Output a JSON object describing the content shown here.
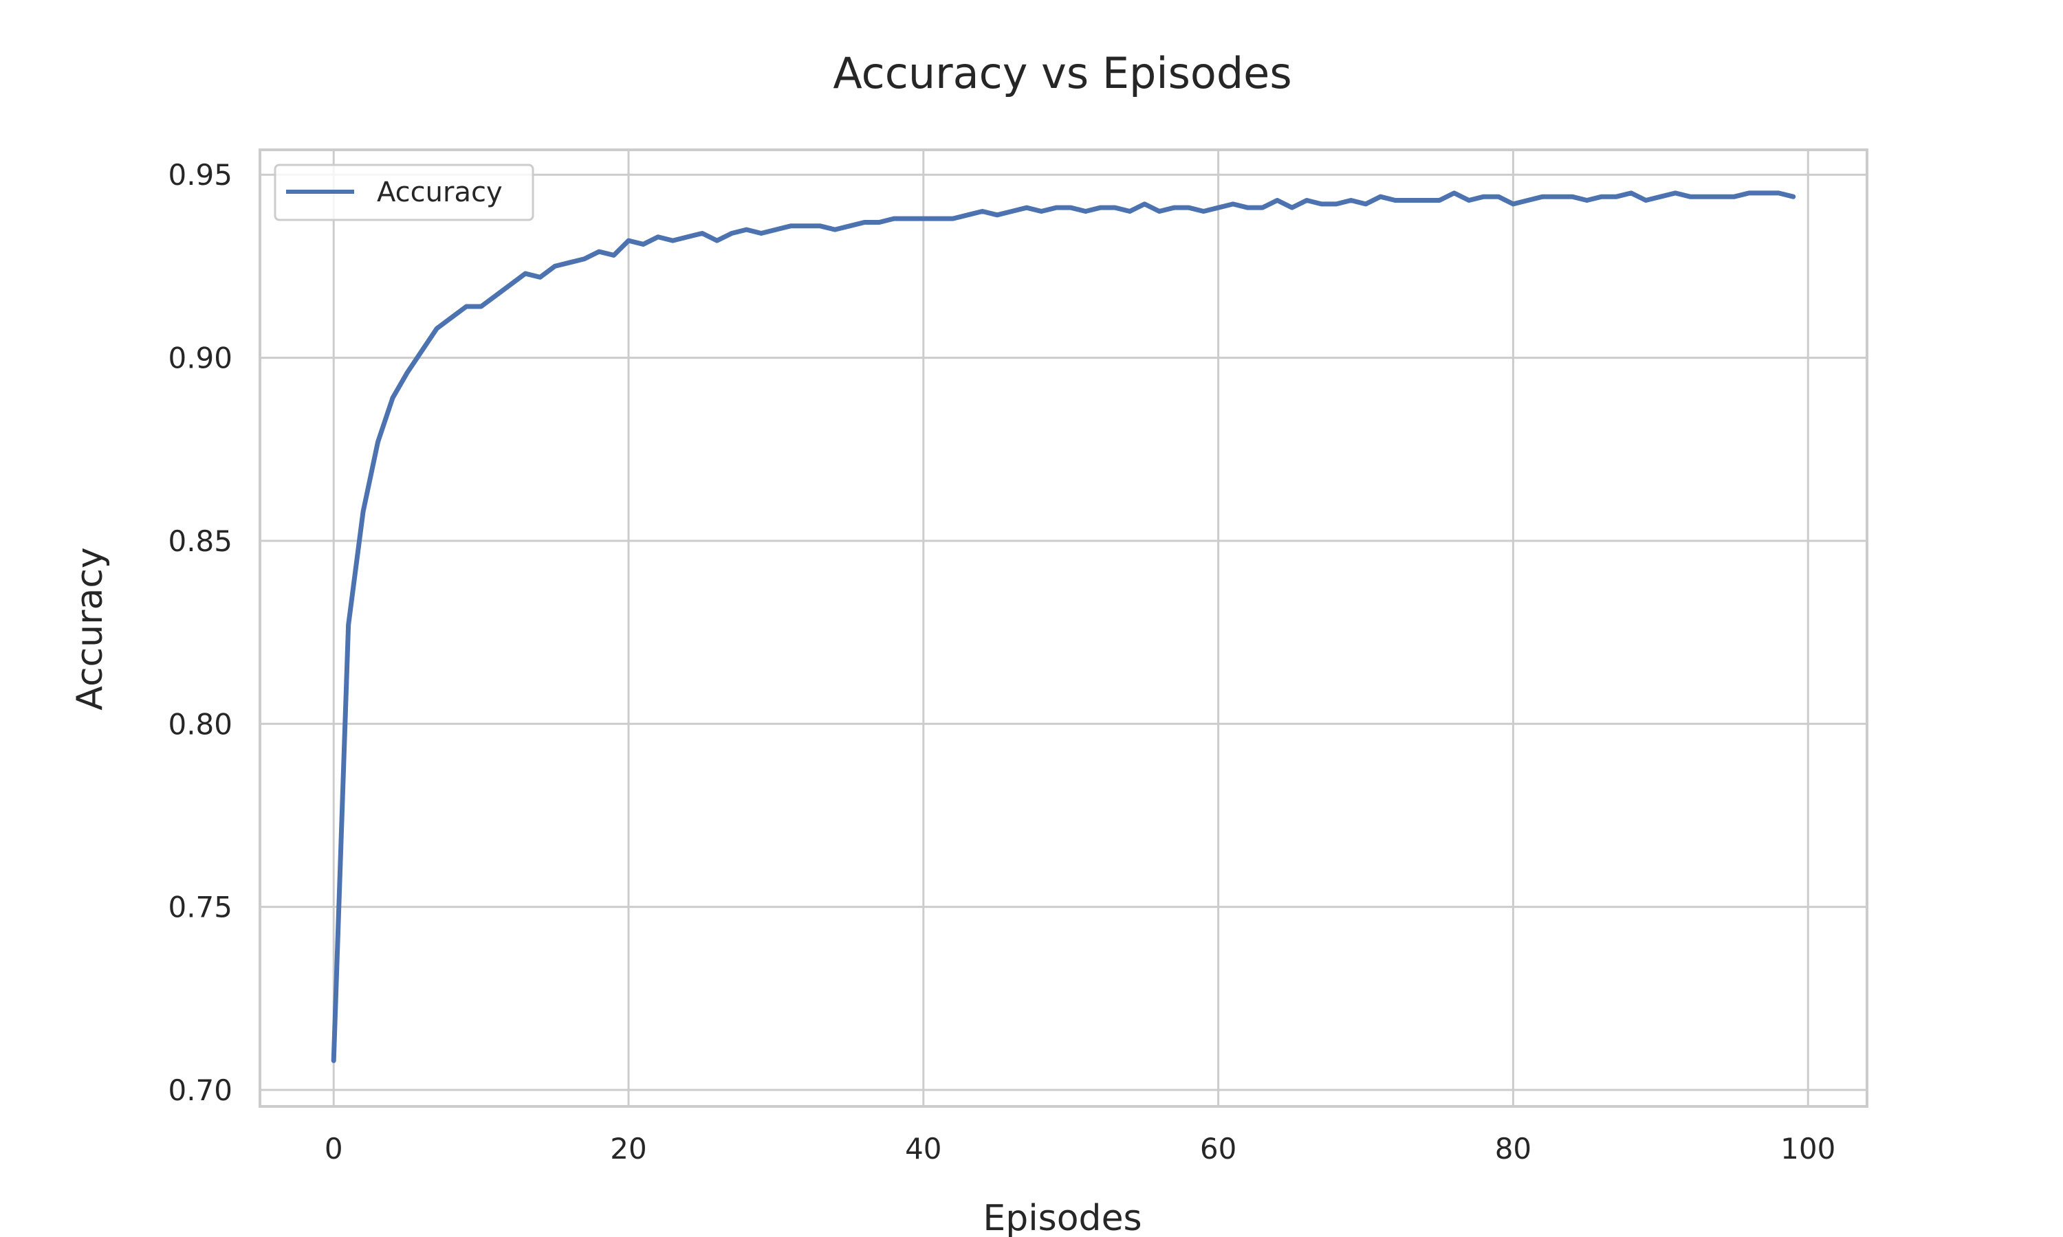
{
  "chart_data": {
    "type": "line",
    "title": "Accuracy vs Episodes",
    "xlabel": "Episodes",
    "ylabel": "Accuracy",
    "xlim": [
      -5,
      104
    ],
    "ylim": [
      0.6955,
      0.9568
    ],
    "xticks": [
      0,
      20,
      40,
      60,
      80,
      100
    ],
    "yticks": [
      0.7,
      0.75,
      0.8,
      0.85,
      0.9,
      0.95
    ],
    "xtick_labels": [
      "0",
      "20",
      "40",
      "60",
      "80",
      "100"
    ],
    "ytick_labels": [
      "0.70",
      "0.75",
      "0.80",
      "0.85",
      "0.90",
      "0.95"
    ],
    "grid": true,
    "legend_position": "top-left",
    "series": [
      {
        "name": "Accuracy",
        "color": "#4c72b0",
        "x": [
          0,
          1,
          2,
          3,
          4,
          5,
          6,
          7,
          8,
          9,
          10,
          11,
          12,
          13,
          14,
          15,
          16,
          17,
          18,
          19,
          20,
          21,
          22,
          23,
          24,
          25,
          26,
          27,
          28,
          29,
          30,
          31,
          32,
          33,
          34,
          35,
          36,
          37,
          38,
          39,
          40,
          41,
          42,
          43,
          44,
          45,
          46,
          47,
          48,
          49,
          50,
          51,
          52,
          53,
          54,
          55,
          56,
          57,
          58,
          59,
          60,
          61,
          62,
          63,
          64,
          65,
          66,
          67,
          68,
          69,
          70,
          71,
          72,
          73,
          74,
          75,
          76,
          77,
          78,
          79,
          80,
          81,
          82,
          83,
          84,
          85,
          86,
          87,
          88,
          89,
          90,
          91,
          92,
          93,
          94,
          95,
          96,
          97,
          98,
          99
        ],
        "values": [
          0.708,
          0.827,
          0.858,
          0.877,
          0.889,
          0.896,
          0.902,
          0.908,
          0.911,
          0.914,
          0.914,
          0.917,
          0.92,
          0.923,
          0.922,
          0.925,
          0.926,
          0.927,
          0.929,
          0.928,
          0.932,
          0.931,
          0.933,
          0.932,
          0.933,
          0.934,
          0.932,
          0.934,
          0.935,
          0.934,
          0.935,
          0.936,
          0.936,
          0.936,
          0.935,
          0.936,
          0.937,
          0.937,
          0.938,
          0.938,
          0.938,
          0.938,
          0.938,
          0.939,
          0.94,
          0.939,
          0.94,
          0.941,
          0.94,
          0.941,
          0.941,
          0.94,
          0.941,
          0.941,
          0.94,
          0.942,
          0.94,
          0.941,
          0.941,
          0.94,
          0.941,
          0.942,
          0.941,
          0.941,
          0.943,
          0.941,
          0.943,
          0.942,
          0.942,
          0.943,
          0.942,
          0.944,
          0.943,
          0.943,
          0.943,
          0.943,
          0.945,
          0.943,
          0.944,
          0.944,
          0.942,
          0.943,
          0.944,
          0.944,
          0.944,
          0.943,
          0.944,
          0.944,
          0.945,
          0.943,
          0.944,
          0.945,
          0.944,
          0.944,
          0.944,
          0.944,
          0.945,
          0.945,
          0.945,
          0.944
        ]
      }
    ]
  }
}
